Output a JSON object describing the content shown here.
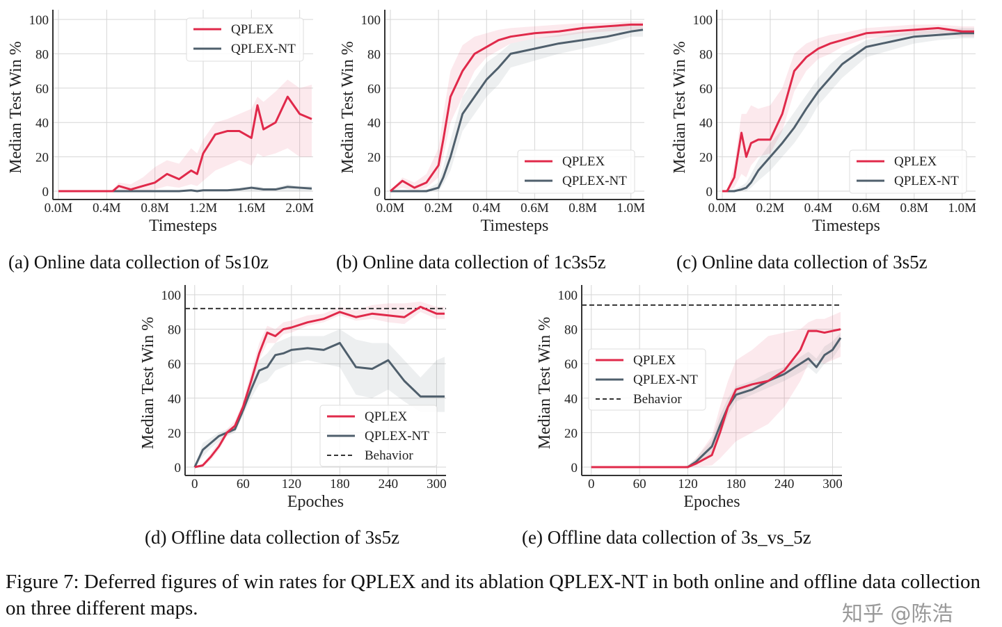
{
  "figure_caption": "Figure 7: Deferred figures of win rates for QPLEX and its ablation QPLEX-NT in both online and offline data collection on three different maps.",
  "watermark": "知乎 @陈浩",
  "colors": {
    "QPLEX": "#e0294a",
    "QPLEX-NT": "#4f5f6c",
    "Behavior": "#333333",
    "grid": "#d6d6d6"
  },
  "chart_data": [
    {
      "type": "line",
      "caption": "(a) Online data collection of 5s10z",
      "xlabel": "Timesteps",
      "ylabel": "Median Test Win %",
      "xlim": [
        0,
        2.1
      ],
      "ylim": [
        0,
        100
      ],
      "grid": true,
      "legend": "top-right",
      "xticks": [
        0,
        0.4,
        0.8,
        1.2,
        1.6,
        2.0
      ],
      "xtick_labels": [
        "0.0M",
        "0.4M",
        "0.8M",
        "1.2M",
        "1.6M",
        "2.0M"
      ],
      "yticks": [
        0,
        20,
        40,
        60,
        80,
        100
      ],
      "ytick_labels": [
        "0",
        "20",
        "40",
        "60",
        "80",
        "100"
      ],
      "x": [
        0,
        0.2,
        0.4,
        0.45,
        0.5,
        0.6,
        0.7,
        0.8,
        0.9,
        1.0,
        1.1,
        1.15,
        1.2,
        1.3,
        1.4,
        1.5,
        1.6,
        1.65,
        1.7,
        1.8,
        1.9,
        2.0,
        2.1
      ],
      "series": [
        {
          "name": "QPLEX",
          "values": [
            0,
            0,
            0,
            0,
            3,
            1,
            3,
            5,
            10,
            7,
            12,
            10,
            22,
            33,
            35,
            35,
            31,
            50,
            36,
            40,
            55,
            45,
            42
          ],
          "lower": [
            0,
            0,
            0,
            0,
            0,
            0,
            0,
            1,
            3,
            2,
            4,
            3,
            6,
            12,
            15,
            18,
            15,
            22,
            20,
            22,
            25,
            20,
            20
          ],
          "upper": [
            0,
            0,
            0,
            1,
            5,
            4,
            8,
            14,
            18,
            16,
            25,
            22,
            30,
            40,
            42,
            45,
            48,
            55,
            52,
            58,
            65,
            60,
            62
          ]
        },
        {
          "name": "QPLEX-NT",
          "values": [
            0,
            0,
            0,
            0,
            0,
            0,
            0,
            0,
            0,
            0,
            0.5,
            0,
            0.5,
            0.5,
            0.5,
            1,
            2,
            1.5,
            1,
            1,
            2.5,
            2,
            1.5
          ],
          "lower": [
            0,
            0,
            0,
            0,
            0,
            0,
            0,
            0,
            0,
            0,
            0,
            0,
            0,
            0,
            0,
            0,
            0,
            0,
            0,
            0,
            0,
            0,
            0
          ],
          "upper": [
            0,
            0,
            0,
            0,
            0,
            0,
            0,
            0,
            0,
            0,
            1,
            1,
            1,
            1,
            1,
            2,
            3,
            3,
            2,
            2,
            4,
            3,
            3
          ]
        }
      ]
    },
    {
      "type": "line",
      "caption": "(b) Online data collection of 1c3s5z",
      "xlabel": "Timesteps",
      "ylabel": "Median Test Win %",
      "xlim": [
        0,
        1.05
      ],
      "ylim": [
        0,
        100
      ],
      "grid": true,
      "legend": "bottom-right",
      "xticks": [
        0,
        0.2,
        0.4,
        0.6,
        0.8,
        1.0
      ],
      "xtick_labels": [
        "0.0M",
        "0.2M",
        "0.4M",
        "0.6M",
        "0.8M",
        "1.0M"
      ],
      "yticks": [
        0,
        20,
        40,
        60,
        80,
        100
      ],
      "ytick_labels": [
        "0",
        "20",
        "40",
        "60",
        "80",
        "100"
      ],
      "x": [
        0,
        0.05,
        0.1,
        0.15,
        0.2,
        0.22,
        0.25,
        0.3,
        0.35,
        0.4,
        0.45,
        0.5,
        0.6,
        0.7,
        0.8,
        0.9,
        1.0,
        1.05
      ],
      "series": [
        {
          "name": "QPLEX",
          "values": [
            0,
            6,
            2,
            5,
            15,
            30,
            55,
            70,
            80,
            84,
            88,
            90,
            92,
            93,
            95,
            96,
            97,
            97
          ],
          "lower": [
            0,
            2,
            0,
            2,
            8,
            20,
            40,
            55,
            70,
            78,
            82,
            86,
            89,
            90,
            92,
            93,
            94,
            94
          ],
          "upper": [
            0,
            8,
            5,
            10,
            25,
            45,
            70,
            85,
            90,
            92,
            94,
            95,
            96,
            97,
            98,
            98,
            99,
            99
          ]
        },
        {
          "name": "QPLEX-NT",
          "values": [
            0,
            0,
            0,
            0,
            2,
            8,
            20,
            45,
            55,
            65,
            72,
            80,
            83,
            86,
            88,
            90,
            93,
            94
          ],
          "lower": [
            0,
            0,
            0,
            0,
            0,
            4,
            12,
            35,
            45,
            55,
            62,
            72,
            76,
            80,
            83,
            86,
            90,
            90
          ],
          "upper": [
            0,
            0,
            0,
            1,
            5,
            14,
            30,
            55,
            65,
            75,
            80,
            86,
            89,
            91,
            93,
            95,
            97,
            97
          ]
        }
      ]
    },
    {
      "type": "line",
      "caption": "(c) Online data collection of 3s5z",
      "xlabel": "Timesteps",
      "ylabel": "Median Test Win %",
      "xlim": [
        0,
        1.05
      ],
      "ylim": [
        0,
        100
      ],
      "grid": true,
      "legend": "bottom-right",
      "xticks": [
        0,
        0.2,
        0.4,
        0.6,
        0.8,
        1.0
      ],
      "xtick_labels": [
        "0.0M",
        "0.2M",
        "0.4M",
        "0.6M",
        "0.8M",
        "1.0M"
      ],
      "yticks": [
        0,
        20,
        40,
        60,
        80,
        100
      ],
      "ytick_labels": [
        "0",
        "20",
        "40",
        "60",
        "80",
        "100"
      ],
      "x": [
        0,
        0.02,
        0.05,
        0.08,
        0.1,
        0.12,
        0.15,
        0.2,
        0.25,
        0.3,
        0.35,
        0.4,
        0.45,
        0.5,
        0.6,
        0.7,
        0.8,
        0.9,
        1.0,
        1.05
      ],
      "series": [
        {
          "name": "QPLEX",
          "values": [
            0,
            0,
            8,
            34,
            20,
            28,
            30,
            30,
            45,
            70,
            78,
            83,
            86,
            88,
            92,
            93,
            94,
            95,
            93,
            93
          ],
          "lower": [
            0,
            0,
            2,
            10,
            8,
            15,
            20,
            22,
            35,
            58,
            70,
            77,
            80,
            84,
            89,
            90,
            91,
            92,
            90,
            90
          ],
          "upper": [
            0,
            0,
            15,
            45,
            45,
            50,
            48,
            50,
            60,
            80,
            86,
            89,
            91,
            92,
            95,
            96,
            97,
            97,
            96,
            96
          ]
        },
        {
          "name": "QPLEX-NT",
          "values": [
            0,
            0,
            0,
            1,
            2,
            5,
            12,
            20,
            28,
            37,
            48,
            58,
            66,
            74,
            84,
            87,
            90,
            91,
            92,
            92
          ],
          "lower": [
            0,
            0,
            0,
            0,
            0,
            2,
            6,
            12,
            20,
            28,
            38,
            50,
            58,
            66,
            78,
            82,
            86,
            88,
            89,
            89
          ],
          "upper": [
            0,
            0,
            1,
            3,
            5,
            10,
            18,
            28,
            36,
            46,
            56,
            66,
            74,
            80,
            88,
            91,
            93,
            94,
            95,
            95
          ]
        }
      ]
    },
    {
      "type": "line",
      "caption": "(d) Offline data collection of 3s5z",
      "xlabel": "Epoches",
      "ylabel": "Median Test Win %",
      "xlim": [
        -5,
        310
      ],
      "ylim": [
        0,
        100
      ],
      "grid": true,
      "legend": "bottom-right",
      "xticks": [
        0,
        60,
        120,
        180,
        240,
        300
      ],
      "xtick_labels": [
        "0",
        "60",
        "120",
        "180",
        "240",
        "300"
      ],
      "yticks": [
        0,
        20,
        40,
        60,
        80,
        100
      ],
      "ytick_labels": [
        "0",
        "20",
        "40",
        "60",
        "80",
        "100"
      ],
      "behavior": 92,
      "x": [
        0,
        10,
        20,
        30,
        40,
        50,
        60,
        70,
        80,
        90,
        100,
        110,
        120,
        140,
        160,
        180,
        200,
        220,
        240,
        260,
        280,
        300,
        310
      ],
      "series": [
        {
          "name": "QPLEX",
          "values": [
            0,
            1,
            6,
            12,
            20,
            24,
            35,
            50,
            66,
            78,
            76,
            80,
            81,
            84,
            86,
            90,
            87,
            89,
            88,
            87,
            93,
            89,
            89
          ],
          "lower": [
            0,
            0,
            4,
            10,
            18,
            22,
            32,
            46,
            62,
            72,
            72,
            77,
            78,
            82,
            84,
            88,
            85,
            86,
            84,
            83,
            90,
            86,
            86
          ],
          "upper": [
            0,
            2,
            8,
            15,
            22,
            27,
            38,
            55,
            72,
            82,
            80,
            84,
            85,
            88,
            89,
            93,
            91,
            94,
            95,
            95,
            96,
            93,
            93
          ]
        },
        {
          "name": "QPLEX-NT",
          "values": [
            0,
            10,
            14,
            18,
            20,
            22,
            33,
            45,
            56,
            58,
            65,
            66,
            68,
            69,
            68,
            72,
            58,
            57,
            62,
            50,
            41,
            41,
            41
          ],
          "lower": [
            0,
            6,
            11,
            15,
            18,
            20,
            30,
            40,
            48,
            50,
            56,
            58,
            60,
            62,
            60,
            58,
            42,
            40,
            45,
            38,
            32,
            32,
            32
          ],
          "upper": [
            0,
            14,
            17,
            20,
            22,
            24,
            36,
            50,
            62,
            66,
            72,
            74,
            76,
            76,
            76,
            80,
            74,
            72,
            72,
            62,
            52,
            62,
            64
          ]
        }
      ]
    },
    {
      "type": "line",
      "caption": "(e) Offline data collection of 3s_vs_5z",
      "xlabel": "Epoches",
      "ylabel": "Median Test Win %",
      "xlim": [
        -5,
        310
      ],
      "ylim": [
        0,
        100
      ],
      "grid": true,
      "legend": "center-left",
      "xticks": [
        0,
        60,
        120,
        180,
        240,
        300
      ],
      "xtick_labels": [
        "0",
        "60",
        "120",
        "180",
        "240",
        "300"
      ],
      "yticks": [
        0,
        20,
        40,
        60,
        80,
        100
      ],
      "ytick_labels": [
        "0",
        "20",
        "40",
        "60",
        "80",
        "100"
      ],
      "behavior": 94,
      "x": [
        0,
        60,
        110,
        120,
        130,
        150,
        160,
        170,
        180,
        200,
        220,
        240,
        260,
        270,
        280,
        290,
        300,
        310
      ],
      "series": [
        {
          "name": "QPLEX",
          "values": [
            0,
            0,
            0,
            0,
            2,
            7,
            20,
            35,
            45,
            48,
            50,
            56,
            68,
            79,
            79,
            78,
            79,
            80
          ],
          "lower": [
            0,
            0,
            0,
            0,
            0,
            1,
            5,
            10,
            15,
            20,
            25,
            35,
            50,
            60,
            62,
            60,
            62,
            64
          ],
          "upper": [
            0,
            0,
            0,
            1,
            5,
            18,
            35,
            50,
            62,
            68,
            76,
            78,
            80,
            84,
            86,
            86,
            88,
            90
          ]
        },
        {
          "name": "QPLEX-NT",
          "values": [
            0,
            0,
            0,
            0,
            3,
            12,
            24,
            35,
            42,
            45,
            50,
            54,
            60,
            63,
            58,
            65,
            68,
            75
          ],
          "lower": [
            0,
            0,
            0,
            0,
            1,
            8,
            18,
            30,
            38,
            42,
            46,
            50,
            55,
            58,
            54,
            60,
            63,
            70
          ],
          "upper": [
            0,
            0,
            0,
            1,
            5,
            16,
            30,
            40,
            47,
            50,
            55,
            58,
            64,
            67,
            63,
            70,
            73,
            78
          ]
        }
      ]
    }
  ],
  "legend_labels": {
    "QPLEX": "QPLEX",
    "QPLEX-NT": "QPLEX-NT",
    "Behavior": "Behavior"
  }
}
